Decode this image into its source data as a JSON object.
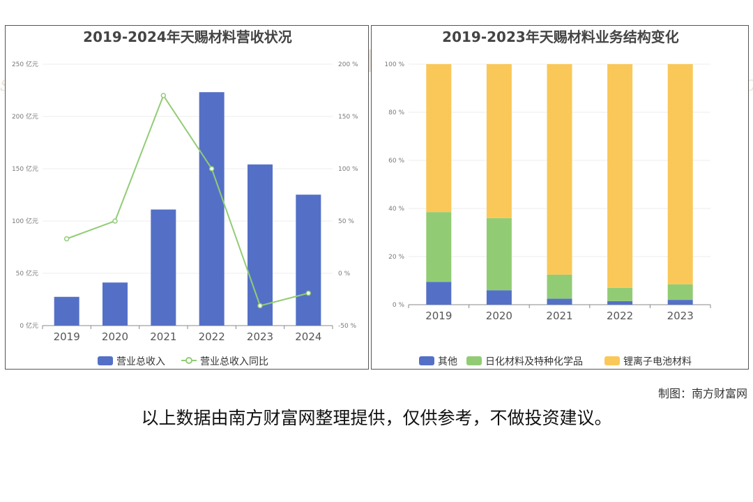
{
  "left_chart": {
    "title": "2019-2024年天赐材料营收状况",
    "legend": [
      "营业总收入",
      "营业总收入同比"
    ],
    "colors": {
      "bar": "#5470c6",
      "line": "#91cc75"
    }
  },
  "right_chart": {
    "title": "2019-2023年天赐材料业务结构变化",
    "legend": [
      "其他",
      "日化材料及特种化学品",
      "锂离子电池材料"
    ],
    "colors": {
      "其他": "#5470c6",
      "日化材料及特种化学品": "#91cc75",
      "锂离子电池材料": "#fac858"
    }
  },
  "watermark": {
    "cn": "南方财富网",
    "en": "southmoney.com"
  },
  "footer": {
    "credit": "制图：南方财富网",
    "disclaimer": "以上数据由南方财富网整理提供，仅供参考，不做投资建议。"
  },
  "chart_data": [
    {
      "type": "bar",
      "title": "2019-2024年天赐材料营收状况",
      "categories": [
        "2019",
        "2020",
        "2021",
        "2022",
        "2023",
        "2024"
      ],
      "y_left_ticks": [
        "0 亿元",
        "50 亿元",
        "100 亿元",
        "150 亿元",
        "200 亿元",
        "250 亿元"
      ],
      "y_right_ticks": [
        "-50 %",
        "0 %",
        "50 %",
        "100 %",
        "150 %",
        "200 %"
      ],
      "ylim_left": [
        0,
        250
      ],
      "ylim_right": [
        -50,
        200
      ],
      "series": [
        {
          "name": "营业总收入",
          "type": "bar",
          "axis": "left",
          "values": [
            27.5,
            41.2,
            111.0,
            223.2,
            154.1,
            125.2
          ]
        },
        {
          "name": "营业总收入同比",
          "type": "line",
          "axis": "right",
          "values": [
            33.0,
            50.0,
            170.0,
            100.0,
            -31.0,
            -19.0
          ]
        }
      ],
      "grid": true,
      "legend_position": "bottom"
    },
    {
      "type": "bar",
      "stacked": true,
      "title": "2019-2023年天赐材料业务结构变化",
      "categories": [
        "2019",
        "2020",
        "2021",
        "2022",
        "2023"
      ],
      "y_ticks": [
        "0 %",
        "20 %",
        "40 %",
        "60 %",
        "80 %",
        "100 %"
      ],
      "ylim": [
        0,
        100
      ],
      "series": [
        {
          "name": "其他",
          "values": [
            9.5,
            6.0,
            2.5,
            1.5,
            2.0
          ]
        },
        {
          "name": "日化材料及特种化学品",
          "values": [
            29.0,
            30.0,
            10.0,
            5.5,
            6.5
          ]
        },
        {
          "name": "锂离子电池材料",
          "values": [
            61.5,
            64.0,
            87.5,
            93.0,
            91.5
          ]
        }
      ],
      "grid": true,
      "legend_position": "bottom"
    }
  ]
}
